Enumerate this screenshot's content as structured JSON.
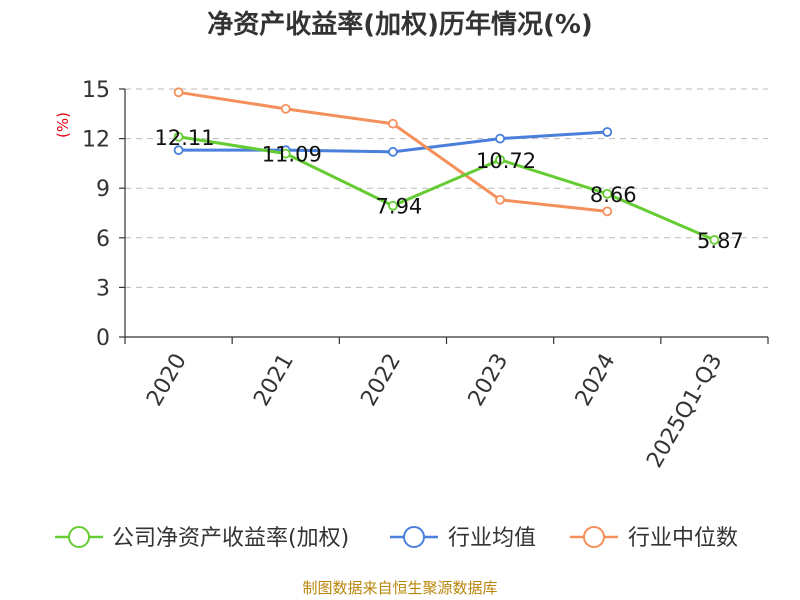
{
  "chart_data": {
    "type": "line",
    "title": "净资产收益率(加权)历年情况(%)",
    "ylabel": "(%)",
    "xlabel": "",
    "categories": [
      "2020",
      "2021",
      "2022",
      "2023",
      "2024",
      "2025Q1-Q3"
    ],
    "ylim": [
      0,
      15
    ],
    "yticks": [
      "0",
      "3",
      "6",
      "9",
      "12",
      "15"
    ],
    "grid": true,
    "legend_position": "bottom",
    "series": [
      {
        "name": "公司净资产收益率(加权)",
        "color": "#66cc33",
        "values": [
          12.11,
          11.09,
          7.94,
          10.72,
          8.66,
          5.87
        ],
        "labels": [
          "12.11",
          "11.09",
          "7.94",
          "10.72",
          "8.66",
          "5.87"
        ]
      },
      {
        "name": "行业均值",
        "color": "#4a7fdc",
        "values": [
          11.3,
          11.3,
          11.2,
          12.0,
          12.4,
          null
        ]
      },
      {
        "name": "行业中位数",
        "color": "#f58f5b",
        "values": [
          14.8,
          13.8,
          12.9,
          8.3,
          7.6,
          null
        ]
      }
    ],
    "source": "制图数据来自恒生聚源数据库"
  }
}
